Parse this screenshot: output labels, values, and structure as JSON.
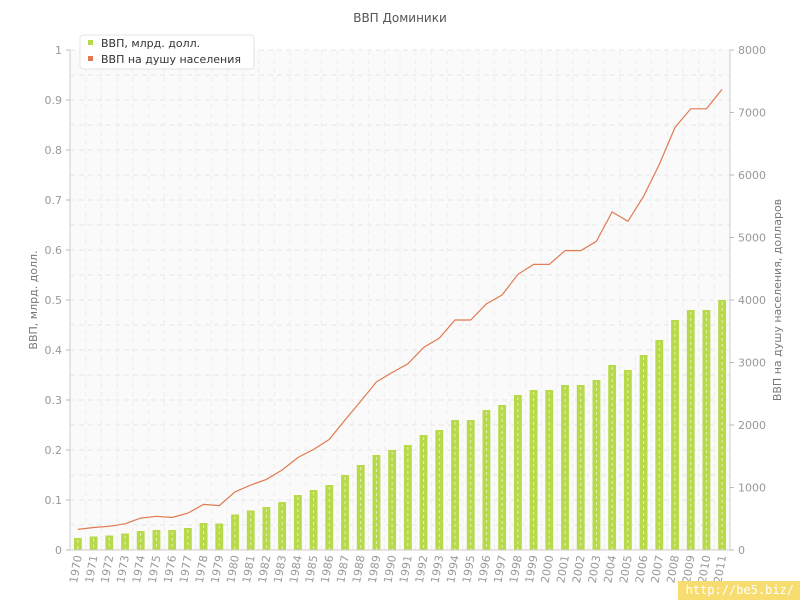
{
  "chart_data": {
    "type": "bar",
    "title": "ВВП Доминики",
    "categories": [
      "1970",
      "1971",
      "1972",
      "1973",
      "1974",
      "1975",
      "1976",
      "1977",
      "1978",
      "1979",
      "1980",
      "1981",
      "1982",
      "1983",
      "1984",
      "1985",
      "1986",
      "1987",
      "1988",
      "1989",
      "1990",
      "1991",
      "1992",
      "1993",
      "1994",
      "1995",
      "1996",
      "1997",
      "1998",
      "1999",
      "2000",
      "2001",
      "2002",
      "2003",
      "2004",
      "2005",
      "2006",
      "2007",
      "2008",
      "2009",
      "2010",
      "2011"
    ],
    "series": [
      {
        "name": "ВВП, млрд. долл.",
        "type": "bar",
        "axis": "left",
        "color": "#b8d94a",
        "values": [
          0.024,
          0.027,
          0.029,
          0.033,
          0.038,
          0.04,
          0.04,
          0.044,
          0.054,
          0.053,
          0.071,
          0.079,
          0.086,
          0.096,
          0.11,
          0.12,
          0.13,
          0.15,
          0.17,
          0.19,
          0.2,
          0.21,
          0.23,
          0.24,
          0.26,
          0.26,
          0.28,
          0.29,
          0.31,
          0.32,
          0.32,
          0.33,
          0.33,
          0.34,
          0.37,
          0.36,
          0.39,
          0.42,
          0.46,
          0.48,
          0.48,
          0.5
        ]
      },
      {
        "name": "ВВП на душу населения",
        "type": "line",
        "axis": "right",
        "color": "#e07a50",
        "values": [
          330,
          360,
          380,
          420,
          510,
          540,
          520,
          590,
          730,
          710,
          930,
          1040,
          1130,
          1280,
          1480,
          1610,
          1770,
          2080,
          2380,
          2690,
          2840,
          2980,
          3240,
          3390,
          3680,
          3680,
          3940,
          4080,
          4410,
          4570,
          4570,
          4790,
          4790,
          4940,
          5410,
          5260,
          5660,
          6170,
          6760,
          7060,
          7060,
          7370
        ]
      }
    ],
    "ylabel": "ВВП, млрд. долл.",
    "ylabel_right": "ВВП на душу населения, долларов",
    "ylim": [
      0,
      1
    ],
    "ylim_right": [
      0,
      8000
    ],
    "yticks": [
      "0",
      "0.1",
      "0.2",
      "0.3",
      "0.4",
      "0.5",
      "0.6",
      "0.7",
      "0.8",
      "0.9",
      "1"
    ],
    "yticks_right": [
      "0",
      "1000",
      "2000",
      "3000",
      "4000",
      "5000",
      "6000",
      "7000",
      "8000"
    ],
    "grid": true,
    "legend_position": "top-left"
  },
  "watermark": "http://be5.biz/"
}
